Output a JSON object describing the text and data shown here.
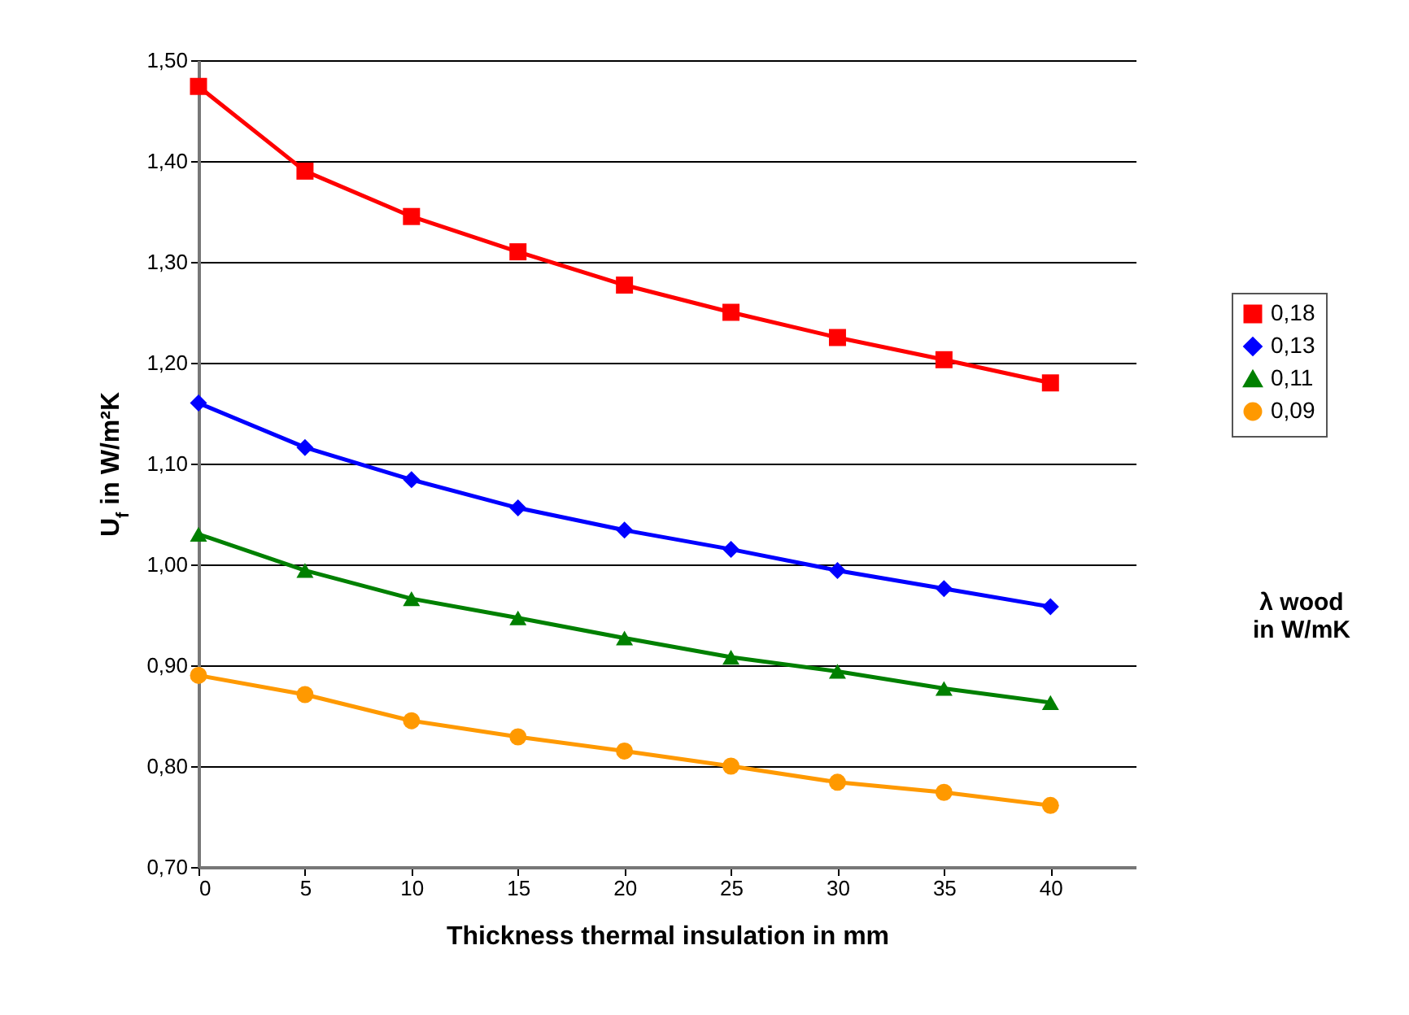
{
  "chart_data": {
    "type": "line",
    "xlabel": "Thickness thermal insulation in mm",
    "ylabel": "U$_{f}$ in W/m²K",
    "legend_title": "λ wood\nin W/mK",
    "x": [
      0,
      5,
      10,
      15,
      20,
      25,
      30,
      35,
      40
    ],
    "series": [
      {
        "name": "0,18",
        "color": "#ff0000",
        "marker": "square",
        "values": [
          1.474,
          1.39,
          1.345,
          1.31,
          1.277,
          1.25,
          1.225,
          1.203,
          1.18
        ]
      },
      {
        "name": "0,13",
        "color": "#0000ff",
        "marker": "diamond",
        "values": [
          1.16,
          1.116,
          1.084,
          1.056,
          1.034,
          1.015,
          0.994,
          0.976,
          0.958
        ]
      },
      {
        "name": "0,11",
        "color": "#008000",
        "marker": "triangle",
        "values": [
          1.03,
          0.994,
          0.966,
          0.947,
          0.927,
          0.908,
          0.894,
          0.877,
          0.863
        ]
      },
      {
        "name": "0,09",
        "color": "#ff9900",
        "marker": "circle",
        "values": [
          0.89,
          0.871,
          0.845,
          0.829,
          0.815,
          0.8,
          0.784,
          0.774,
          0.761
        ]
      }
    ],
    "xlim": [
      0,
      44
    ],
    "xticks": [
      0,
      5,
      10,
      15,
      20,
      25,
      30,
      35,
      40
    ],
    "ylim": [
      0.7,
      1.5
    ],
    "yticks": [
      {
        "value": 0.7,
        "label": "0,70"
      },
      {
        "value": 0.8,
        "label": "0,80"
      },
      {
        "value": 0.9,
        "label": "0,90"
      },
      {
        "value": 1.0,
        "label": "1,00"
      },
      {
        "value": 1.1,
        "label": "1,10"
      },
      {
        "value": 1.2,
        "label": "1,20"
      },
      {
        "value": 1.3,
        "label": "1,30"
      },
      {
        "value": 1.4,
        "label": "1,40"
      },
      {
        "value": 1.5,
        "label": "1,50"
      }
    ],
    "grid": "y",
    "legend": "right",
    "line_style": "solid"
  }
}
